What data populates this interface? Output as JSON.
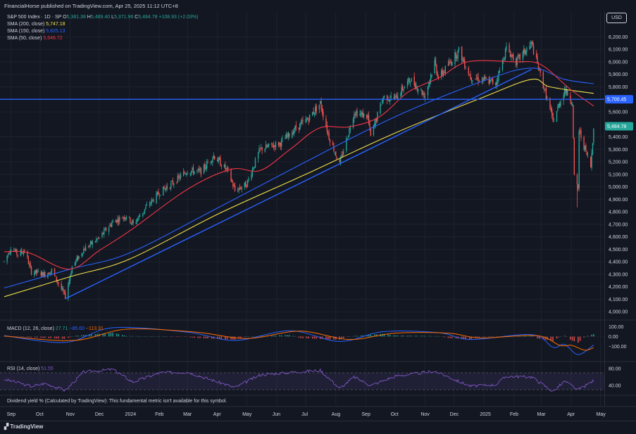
{
  "header": {
    "publish_info": "FinancialHorse published on TradingView.com, Apr 25, 2025 11:12 UTC+8",
    "currency": "USD"
  },
  "legend": {
    "symbol": "S&P 500 Index · 1D · SP",
    "ohlc": [
      {
        "k": "O",
        "v": "5,381.38"
      },
      {
        "k": "H",
        "v": "5,489.40"
      },
      {
        "k": "L",
        "v": "5,371.96"
      },
      {
        "k": "C",
        "v": "5,484.78"
      }
    ],
    "change": "+108.93 (+2.03%)",
    "smas": [
      {
        "label": "SMA (200, close)",
        "value": "5,747.18",
        "color": "#f0e04a"
      },
      {
        "label": "SMA (150, close)",
        "value": "5,825.13",
        "color": "#2962ff"
      },
      {
        "label": "SMA (50, close)",
        "value": "5,646.72",
        "color": "#f23645"
      }
    ]
  },
  "colors": {
    "up": "#26a69a",
    "down": "#ef5350",
    "sma200": "#f0e04a",
    "sma150": "#2962ff",
    "sma50": "#f23645",
    "hline": "#2962ff",
    "trend": "#2962ff",
    "macd": "#2962ff",
    "signal": "#ff6d00",
    "rsi": "#7e57c2"
  },
  "chart_data": [
    {
      "type": "candlestick",
      "title": "S&P 500 Index · 1D · SP",
      "yticks": [
        "6,200.00",
        "6,100.00",
        "6,000.00",
        "5,900.00",
        "5,800.00",
        "5,600.00",
        "5,400.00",
        "5,300.00",
        "5,200.00",
        "5,100.00",
        "5,000.00",
        "4,900.00",
        "4,800.00",
        "4,700.00",
        "4,600.00",
        "4,500.00",
        "4,400.00",
        "4,300.00",
        "4,200.00",
        "4,100.00",
        "4,000.00"
      ],
      "ytick_values": [
        6200,
        6100,
        6000,
        5900,
        5800,
        5600,
        5400,
        5300,
        5200,
        5100,
        5000,
        4900,
        4800,
        4700,
        4600,
        4500,
        4400,
        4300,
        4200,
        4100,
        4000
      ],
      "ylim": [
        3950,
        6270
      ],
      "xticks": [
        "Sep",
        "Oct",
        "Nov",
        "Dec",
        "2024",
        "Feb",
        "Mar",
        "Apr",
        "May",
        "Jun",
        "Jul",
        "Aug",
        "Sep",
        "Oct",
        "Nov",
        "Dec",
        "2025",
        "Feb",
        "Mar",
        "Apr",
        "May"
      ],
      "x_range": [
        "2023-08-25",
        "2025-05-05"
      ],
      "price_path": [
        [
          "2023-08-25",
          4400
        ],
        [
          "2023-09-01",
          4515
        ],
        [
          "2023-09-08",
          4460
        ],
        [
          "2023-09-15",
          4490
        ],
        [
          "2023-09-22",
          4320
        ],
        [
          "2023-10-06",
          4300
        ],
        [
          "2023-10-13",
          4330
        ],
        [
          "2023-10-27",
          4120
        ],
        [
          "2023-11-03",
          4360
        ],
        [
          "2023-11-15",
          4500
        ],
        [
          "2023-12-01",
          4590
        ],
        [
          "2023-12-15",
          4720
        ],
        [
          "2023-12-29",
          4770
        ],
        [
          "2024-01-05",
          4700
        ],
        [
          "2024-01-19",
          4840
        ],
        [
          "2024-02-02",
          4960
        ],
        [
          "2024-02-15",
          5030
        ],
        [
          "2024-03-01",
          5130
        ],
        [
          "2024-03-15",
          5120
        ],
        [
          "2024-03-28",
          5250
        ],
        [
          "2024-04-12",
          5120
        ],
        [
          "2024-04-19",
          4970
        ],
        [
          "2024-05-01",
          5020
        ],
        [
          "2024-05-15",
          5300
        ],
        [
          "2024-06-05",
          5350
        ],
        [
          "2024-06-21",
          5470
        ],
        [
          "2024-07-03",
          5540
        ],
        [
          "2024-07-16",
          5670
        ],
        [
          "2024-07-25",
          5400
        ],
        [
          "2024-08-05",
          5180
        ],
        [
          "2024-08-20",
          5600
        ],
        [
          "2024-09-03",
          5560
        ],
        [
          "2024-09-06",
          5400
        ],
        [
          "2024-09-19",
          5720
        ],
        [
          "2024-10-01",
          5710
        ],
        [
          "2024-10-17",
          5860
        ],
        [
          "2024-11-01",
          5730
        ],
        [
          "2024-11-11",
          6000
        ],
        [
          "2024-11-15",
          5870
        ],
        [
          "2024-12-06",
          6090
        ],
        [
          "2024-12-18",
          5880
        ],
        [
          "2025-01-13",
          5830
        ],
        [
          "2025-01-24",
          6110
        ],
        [
          "2025-02-03",
          6000
        ],
        [
          "2025-02-19",
          6145
        ],
        [
          "2025-03-10",
          5620
        ],
        [
          "2025-03-13",
          5520
        ],
        [
          "2025-03-25",
          5780
        ],
        [
          "2025-04-02",
          5680
        ],
        [
          "2025-04-04",
          5075
        ],
        [
          "2025-04-08",
          4980
        ],
        [
          "2025-04-09",
          5450
        ],
        [
          "2025-04-16",
          5280
        ],
        [
          "2025-04-21",
          5160
        ],
        [
          "2025-04-24",
          5484.78
        ]
      ],
      "lows": [
        [
          "2023-10-27",
          4103
        ],
        [
          "2025-04-07",
          4835
        ]
      ],
      "highs": [
        [
          "2025-02-19",
          6147
        ]
      ],
      "sma200": [
        [
          "2023-08-25",
          4120
        ],
        [
          "2023-11-01",
          4280
        ],
        [
          "2024-01-01",
          4420
        ],
        [
          "2024-04-01",
          4780
        ],
        [
          "2024-07-01",
          5100
        ],
        [
          "2024-10-01",
          5430
        ],
        [
          "2025-01-01",
          5720
        ],
        [
          "2025-02-19",
          5860
        ],
        [
          "2025-03-10",
          5800
        ],
        [
          "2025-04-24",
          5747.18
        ]
      ],
      "sma150": [
        [
          "2023-08-25",
          4190
        ],
        [
          "2023-11-01",
          4340
        ],
        [
          "2024-01-01",
          4470
        ],
        [
          "2024-04-01",
          4830
        ],
        [
          "2024-07-01",
          5200
        ],
        [
          "2024-10-01",
          5560
        ],
        [
          "2025-01-01",
          5850
        ],
        [
          "2025-02-19",
          5950
        ],
        [
          "2025-03-25",
          5860
        ],
        [
          "2025-04-24",
          5825.13
        ]
      ],
      "sma50": [
        [
          "2023-08-25",
          4480
        ],
        [
          "2023-09-20",
          4470
        ],
        [
          "2023-10-31",
          4340
        ],
        [
          "2023-12-01",
          4490
        ],
        [
          "2024-01-02",
          4650
        ],
        [
          "2024-03-01",
          4980
        ],
        [
          "2024-04-15",
          5140
        ],
        [
          "2024-05-15",
          5130
        ],
        [
          "2024-06-15",
          5300
        ],
        [
          "2024-07-15",
          5470
        ],
        [
          "2024-08-15",
          5480
        ],
        [
          "2024-09-15",
          5560
        ],
        [
          "2024-10-15",
          5760
        ],
        [
          "2024-11-15",
          5870
        ],
        [
          "2024-12-15",
          6000
        ],
        [
          "2025-01-31",
          6000
        ],
        [
          "2025-02-28",
          5980
        ],
        [
          "2025-03-31",
          5780
        ],
        [
          "2025-04-24",
          5646.72
        ]
      ],
      "horizontal_line": {
        "value": 5700.45,
        "label": "5,700.45"
      },
      "trendline": [
        [
          "2023-10-27",
          4103
        ],
        [
          "2025-02-19",
          5940
        ]
      ],
      "last_price": "5,484.78"
    },
    {
      "type": "line",
      "title": "MACD (12, 26, close)",
      "values_display": [
        "27.71",
        "−85.60",
        "−113.31"
      ],
      "yticks": [
        "100.00",
        "0.00",
        "−100.00"
      ],
      "ytick_values": [
        100,
        0,
        -100
      ],
      "ylim": [
        -220,
        140
      ],
      "macd": [
        [
          "2023-08-25",
          10
        ],
        [
          "2023-10-27",
          -60
        ],
        [
          "2023-12-15",
          90
        ],
        [
          "2024-03-01",
          45
        ],
        [
          "2024-04-19",
          -40
        ],
        [
          "2024-06-15",
          60
        ],
        [
          "2024-08-05",
          -50
        ],
        [
          "2024-09-19",
          50
        ],
        [
          "2024-11-15",
          40
        ],
        [
          "2024-12-18",
          -30
        ],
        [
          "2025-02-19",
          20
        ],
        [
          "2025-03-13",
          -110
        ],
        [
          "2025-03-25",
          -80
        ],
        [
          "2025-04-08",
          -185
        ],
        [
          "2025-04-24",
          -85.6
        ]
      ],
      "signal": [
        [
          "2023-08-25",
          5
        ],
        [
          "2023-11-05",
          -40
        ],
        [
          "2023-12-29",
          75
        ],
        [
          "2024-03-10",
          45
        ],
        [
          "2024-05-01",
          -20
        ],
        [
          "2024-06-25",
          55
        ],
        [
          "2024-08-15",
          -30
        ],
        [
          "2024-10-01",
          35
        ],
        [
          "2024-11-25",
          35
        ],
        [
          "2024-12-28",
          -15
        ],
        [
          "2025-02-24",
          10
        ],
        [
          "2025-03-20",
          -90
        ],
        [
          "2025-04-01",
          -90
        ],
        [
          "2025-04-15",
          -140
        ],
        [
          "2025-04-24",
          -113.31
        ]
      ]
    },
    {
      "type": "line",
      "title": "RSI (14, close)",
      "values_display": [
        "51.55"
      ],
      "yticks": [
        "80.00",
        "40.00"
      ],
      "ytick_values": [
        80,
        40
      ],
      "ylim": [
        20,
        90
      ],
      "band": [
        30,
        70
      ],
      "rsi": [
        [
          "2023-08-25",
          55
        ],
        [
          "2023-09-22",
          38
        ],
        [
          "2023-10-06",
          45
        ],
        [
          "2023-10-27",
          28
        ],
        [
          "2023-11-15",
          72
        ],
        [
          "2023-12-15",
          78
        ],
        [
          "2024-01-05",
          48
        ],
        [
          "2024-02-02",
          70
        ],
        [
          "2024-03-01",
          72
        ],
        [
          "2024-04-19",
          35
        ],
        [
          "2024-05-15",
          65
        ],
        [
          "2024-06-21",
          72
        ],
        [
          "2024-07-16",
          76
        ],
        [
          "2024-08-05",
          33
        ],
        [
          "2024-08-20",
          60
        ],
        [
          "2024-09-06",
          40
        ],
        [
          "2024-10-01",
          62
        ],
        [
          "2024-11-11",
          74
        ],
        [
          "2024-12-18",
          38
        ],
        [
          "2025-01-13",
          42
        ],
        [
          "2025-01-24",
          62
        ],
        [
          "2025-02-19",
          60
        ],
        [
          "2025-03-13",
          26
        ],
        [
          "2025-03-25",
          50
        ],
        [
          "2025-04-08",
          30
        ],
        [
          "2025-04-16",
          40
        ],
        [
          "2025-04-24",
          51.55
        ]
      ]
    }
  ],
  "dividend_note": "Dividend yield % (Calculated by TradingView): This fundamental metric isn't available for this symbol.",
  "footer": {
    "brand": "TradingView"
  }
}
